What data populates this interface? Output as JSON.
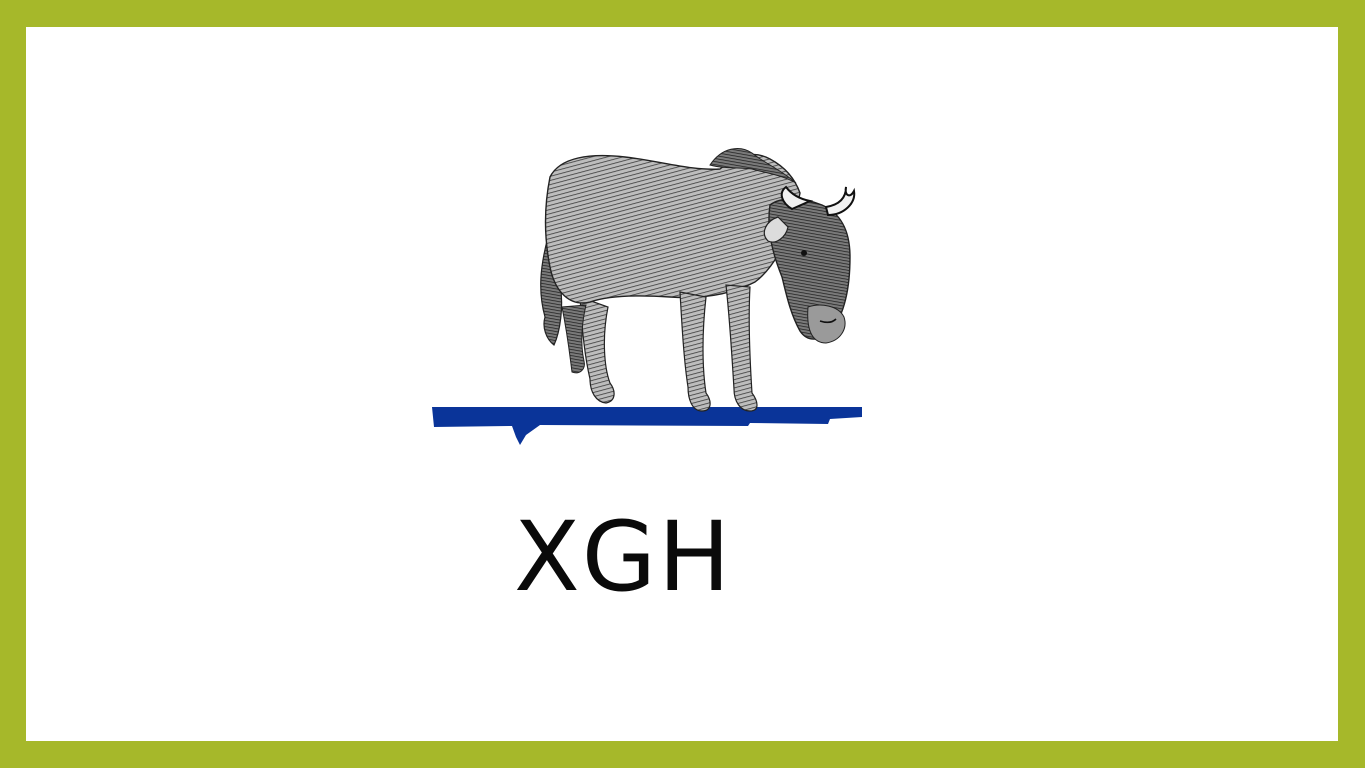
{
  "slide": {
    "title": "XGH",
    "colors": {
      "border": "#a6b82a",
      "background": "#ffffff",
      "ground_stripe": "#0a3499",
      "text": "#0a0a0a"
    },
    "illustration": {
      "icon": "wildebeest-engraving-icon",
      "description_style": "black-and-white engraving on blue ground stripe"
    }
  }
}
